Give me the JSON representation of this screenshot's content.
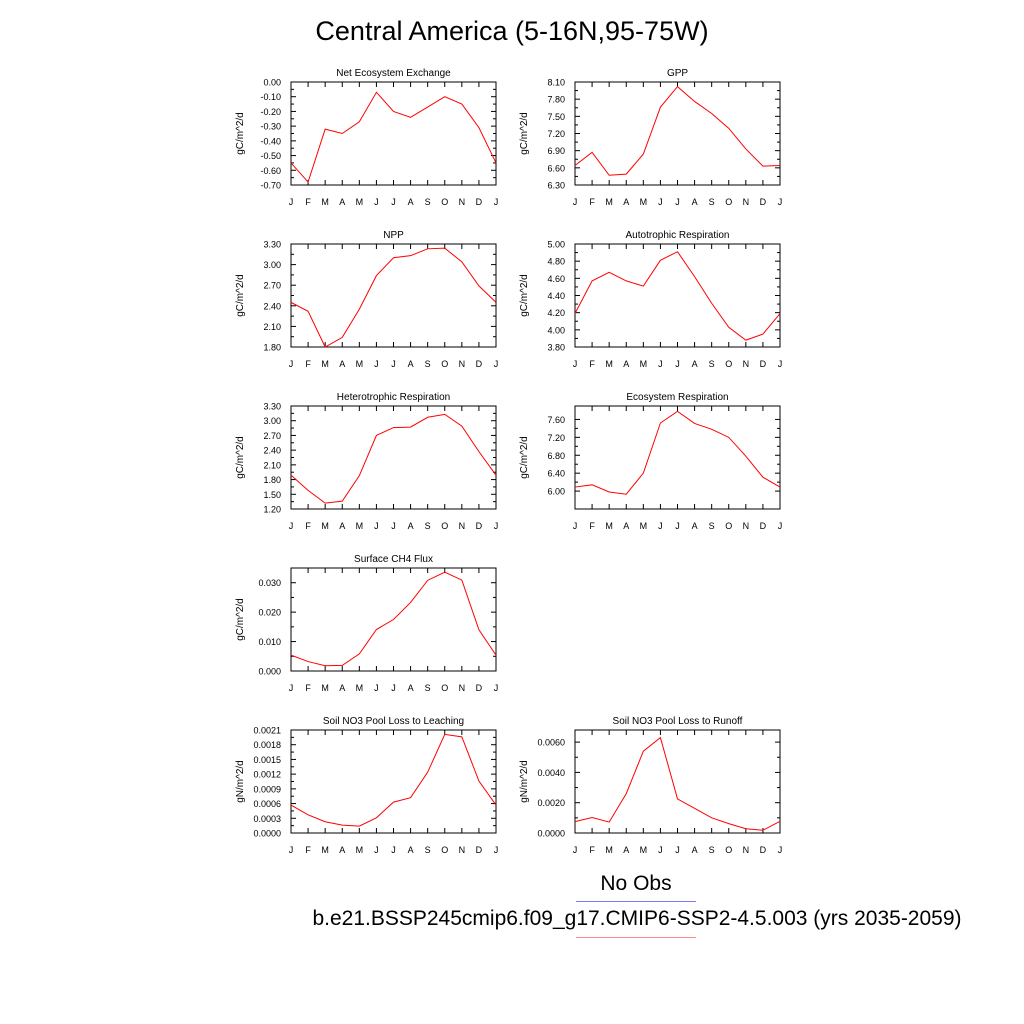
{
  "page": {
    "title": "Central America (5-16N,95-75W)",
    "legend": {
      "obs_label": "No Obs",
      "obs_color": "#7b7bff",
      "case_label": "b.e21.BSSP245cmip6.f09_g17.CMIP6-SSP2-4.5.003 (yrs 2035-2059)",
      "case_color": "#ff8a8a"
    },
    "line_color": "#ff0000"
  },
  "chart_data": [
    {
      "type": "line",
      "title": "Net Ecosystem Exchange",
      "ylabel": "gC/m^2/d",
      "categories": [
        "J",
        "F",
        "M",
        "A",
        "M",
        "J",
        "J",
        "A",
        "S",
        "O",
        "N",
        "D",
        "J"
      ],
      "values": [
        -0.55,
        -0.68,
        -0.32,
        -0.35,
        -0.27,
        -0.07,
        -0.2,
        -0.24,
        -0.17,
        -0.1,
        -0.15,
        -0.31,
        -0.55
      ],
      "ylim": [
        -0.7,
        0.0
      ],
      "yticks": [
        "0.00",
        "-0.10",
        "-0.20",
        "-0.30",
        "-0.40",
        "-0.50",
        "-0.60",
        "-0.70"
      ]
    },
    {
      "type": "line",
      "title": "GPP",
      "ylabel": "gC/m^2/d",
      "categories": [
        "J",
        "F",
        "M",
        "A",
        "M",
        "J",
        "J",
        "A",
        "S",
        "O",
        "N",
        "D",
        "J"
      ],
      "values": [
        6.64,
        6.87,
        6.47,
        6.49,
        6.84,
        7.66,
        8.02,
        7.76,
        7.55,
        7.29,
        6.93,
        6.63,
        6.64
      ],
      "ylim": [
        6.3,
        8.1
      ],
      "yticks": [
        "8.10",
        "7.80",
        "7.50",
        "7.20",
        "6.90",
        "6.60",
        "6.30"
      ]
    },
    {
      "type": "line",
      "title": "NPP",
      "ylabel": "gC/m^2/d",
      "categories": [
        "J",
        "F",
        "M",
        "A",
        "M",
        "J",
        "J",
        "A",
        "S",
        "O",
        "N",
        "D",
        "J"
      ],
      "values": [
        2.45,
        2.32,
        1.8,
        1.94,
        2.35,
        2.84,
        3.1,
        3.13,
        3.23,
        3.24,
        3.04,
        2.69,
        2.45
      ],
      "ylim": [
        1.8,
        3.3
      ],
      "yticks": [
        "3.30",
        "3.00",
        "2.70",
        "2.40",
        "2.10",
        "1.80"
      ]
    },
    {
      "type": "line",
      "title": "Autotrophic Respiration",
      "ylabel": "gC/m^2/d",
      "categories": [
        "J",
        "F",
        "M",
        "A",
        "M",
        "J",
        "J",
        "A",
        "S",
        "O",
        "N",
        "D",
        "J"
      ],
      "values": [
        4.19,
        4.57,
        4.67,
        4.57,
        4.51,
        4.81,
        4.91,
        4.62,
        4.31,
        4.03,
        3.88,
        3.95,
        4.19
      ],
      "ylim": [
        3.8,
        5.0
      ],
      "yticks": [
        "5.00",
        "4.80",
        "4.60",
        "4.40",
        "4.20",
        "4.00",
        "3.80"
      ]
    },
    {
      "type": "line",
      "title": "Heterotrophic Respiration",
      "ylabel": "gC/m^2/d",
      "categories": [
        "J",
        "F",
        "M",
        "A",
        "M",
        "J",
        "J",
        "A",
        "S",
        "O",
        "N",
        "D",
        "J"
      ],
      "values": [
        1.89,
        1.58,
        1.32,
        1.36,
        1.88,
        2.7,
        2.86,
        2.87,
        3.07,
        3.13,
        2.89,
        2.37,
        1.89
      ],
      "ylim": [
        1.2,
        3.3
      ],
      "yticks": [
        "3.30",
        "3.00",
        "2.70",
        "2.40",
        "2.10",
        "1.80",
        "1.50",
        "1.20"
      ]
    },
    {
      "type": "line",
      "title": "Ecosystem Respiration",
      "ylabel": "gC/m^2/d",
      "categories": [
        "J",
        "F",
        "M",
        "A",
        "M",
        "J",
        "J",
        "A",
        "S",
        "O",
        "N",
        "D",
        "J"
      ],
      "values": [
        6.09,
        6.14,
        5.98,
        5.93,
        6.4,
        7.52,
        7.78,
        7.51,
        7.38,
        7.2,
        6.78,
        6.31,
        6.09
      ],
      "ylim": [
        5.6,
        7.9
      ],
      "yticks": [
        "7.60",
        "7.20",
        "6.80",
        "6.40",
        "6.00"
      ]
    },
    {
      "type": "line",
      "title": "Surface CH4 Flux",
      "ylabel": "gC/m^2/d",
      "categories": [
        "J",
        "F",
        "M",
        "A",
        "M",
        "J",
        "J",
        "A",
        "S",
        "O",
        "N",
        "D",
        "J"
      ],
      "values": [
        0.0054,
        0.0032,
        0.0018,
        0.0019,
        0.0058,
        0.0141,
        0.0175,
        0.0233,
        0.0308,
        0.0336,
        0.0309,
        0.014,
        0.0054
      ],
      "ylim": [
        0.0,
        0.035
      ],
      "yticks": [
        "0.030",
        "0.020",
        "0.010",
        "0.000"
      ]
    },
    {
      "type": "line",
      "title": "Soil NO3 Pool Loss to Leaching",
      "ylabel": "gN/m^2/d",
      "categories": [
        "J",
        "F",
        "M",
        "A",
        "M",
        "J",
        "J",
        "A",
        "S",
        "O",
        "N",
        "D",
        "J"
      ],
      "values": [
        0.00057,
        0.00037,
        0.00023,
        0.00016,
        0.00014,
        0.00031,
        0.00063,
        0.00072,
        0.00124,
        0.00201,
        0.00196,
        0.00106,
        0.00057
      ],
      "ylim": [
        0.0,
        0.0021
      ],
      "yticks": [
        "0.0021",
        "0.0018",
        "0.0015",
        "0.0012",
        "0.0009",
        "0.0006",
        "0.0003",
        "0.0000"
      ]
    },
    {
      "type": "line",
      "title": "Soil NO3 Pool Loss to Runoff",
      "ylabel": "gN/m^2/d",
      "categories": [
        "J",
        "F",
        "M",
        "A",
        "M",
        "J",
        "J",
        "A",
        "S",
        "O",
        "N",
        "D",
        "J"
      ],
      "values": [
        0.00075,
        0.00102,
        0.00072,
        0.0026,
        0.0054,
        0.0063,
        0.00225,
        0.00163,
        0.001,
        0.00062,
        0.00028,
        0.00018,
        0.00077
      ],
      "ylim": [
        0.0,
        0.0068
      ],
      "yticks": [
        "0.0060",
        "0.0040",
        "0.0020",
        "0.0000"
      ]
    }
  ]
}
